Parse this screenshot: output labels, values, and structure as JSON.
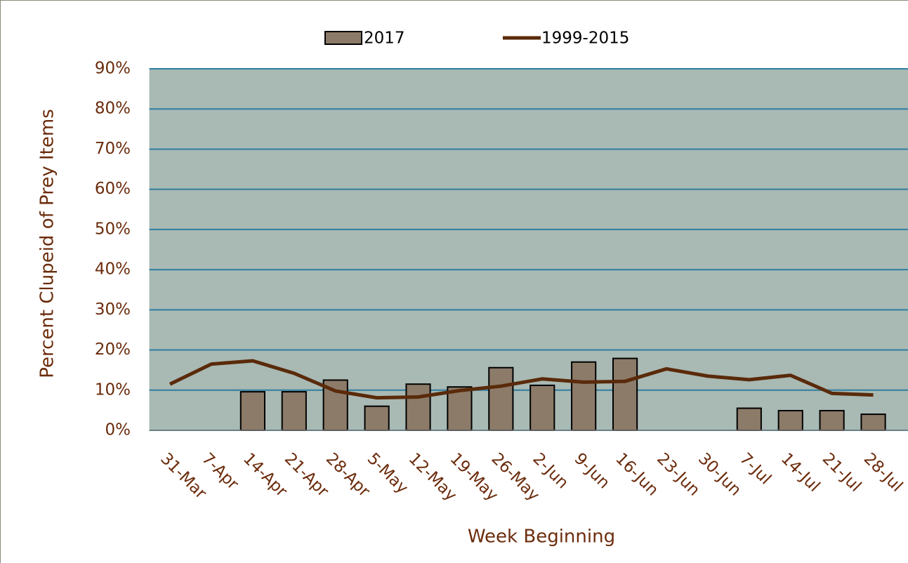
{
  "chart_data": {
    "type": "bar",
    "x_label": "Week Beginning",
    "y_label": "Percent Clupeid of Prey Items",
    "categories": [
      "31-Mar",
      "7-Apr",
      "14-Apr",
      "21-Apr",
      "28-Apr",
      "5-May",
      "12-May",
      "19-May",
      "26-May",
      "2-Jun",
      "9-Jun",
      "16-Jun",
      "23-Jun",
      "30-Jun",
      "7-Jul",
      "14-Jul",
      "21-Jul",
      "28-Jul"
    ],
    "series": [
      {
        "name": "2017",
        "type": "bar",
        "color": "#8c7b69",
        "values": [
          null,
          null,
          9.6,
          9.6,
          12.5,
          6.0,
          11.5,
          10.8,
          15.6,
          11.2,
          17.0,
          17.9,
          null,
          null,
          5.5,
          4.9,
          4.9,
          4.0
        ]
      },
      {
        "name": "1999-2015",
        "type": "line",
        "color": "#5a2a0a",
        "values": [
          11.5,
          16.5,
          17.3,
          14.2,
          9.8,
          8.1,
          8.3,
          9.9,
          11.0,
          12.8,
          12.0,
          12.2,
          15.3,
          13.5,
          12.6,
          13.7,
          9.2,
          8.8
        ]
      }
    ],
    "ylim": [
      0,
      90
    ],
    "yticks": [
      {
        "value": 0,
        "label": "0%"
      },
      {
        "value": 10,
        "label": "10%"
      },
      {
        "value": 20,
        "label": "20%"
      },
      {
        "value": 30,
        "label": "30%"
      },
      {
        "value": 40,
        "label": "40%"
      },
      {
        "value": 50,
        "label": "50%"
      },
      {
        "value": 60,
        "label": "60%"
      },
      {
        "value": 70,
        "label": "70%"
      },
      {
        "value": 80,
        "label": "80%"
      },
      {
        "value": 90,
        "label": "90%"
      }
    ],
    "grid": true,
    "plot_background": "#a9b9b4",
    "grid_color": "#2f7fa0"
  }
}
